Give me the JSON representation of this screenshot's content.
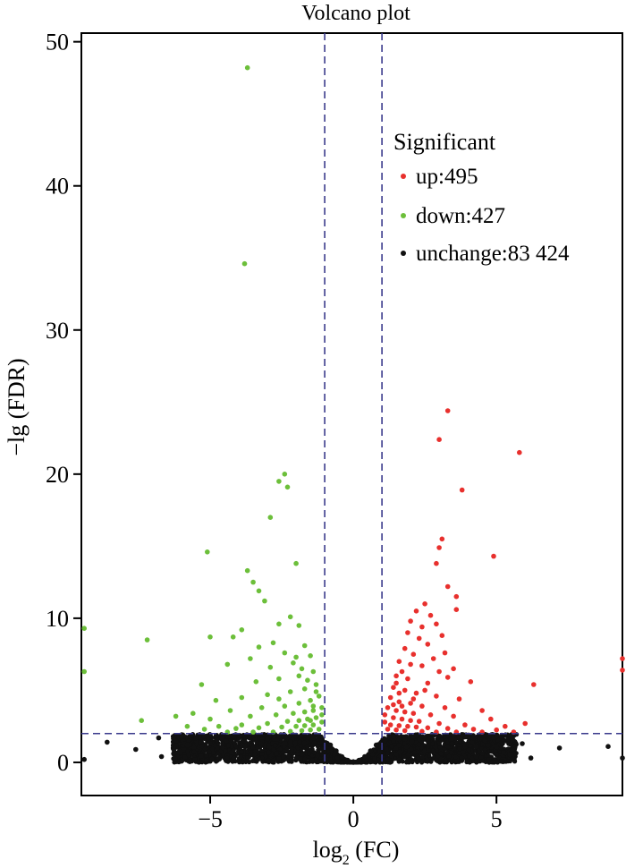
{
  "chart_data": {
    "type": "scatter",
    "title": "Volcano plot",
    "xlabel_main": "log",
    "xlabel_sub": "2",
    "xlabel_tail": " (FC)",
    "ylabel": "−lg (FDR)",
    "xlim": [
      -9.5,
      9.4
    ],
    "ylim": [
      -2.3,
      50.6
    ],
    "xticks": [
      -5,
      0,
      5
    ],
    "xtick_labels": [
      "−5",
      "0",
      "5"
    ],
    "yticks": [
      0,
      10,
      20,
      30,
      40,
      50
    ],
    "ytick_labels": [
      "0",
      "10",
      "20",
      "30",
      "40",
      "50"
    ],
    "thresholds": {
      "x": [
        -1,
        1
      ],
      "y": 2
    },
    "grid": false,
    "legend": {
      "position": "top-right",
      "title": "Significant",
      "entries": [
        {
          "label": "up:495",
          "color": "#e8302d"
        },
        {
          "label": "down:427",
          "color": "#6cbf3a"
        },
        {
          "label": "unchange:83 424",
          "color": "#111111"
        }
      ]
    },
    "series": [
      {
        "name": "up",
        "color": "#e8302d",
        "points": [
          [
            3.3,
            24.4
          ],
          [
            3.0,
            22.4
          ],
          [
            5.8,
            21.5
          ],
          [
            3.8,
            18.9
          ],
          [
            3.1,
            15.5
          ],
          [
            3.0,
            14.9
          ],
          [
            4.9,
            14.3
          ],
          [
            2.9,
            13.8
          ],
          [
            3.3,
            12.2
          ],
          [
            3.6,
            11.5
          ],
          [
            2.5,
            11.0
          ],
          [
            2.2,
            10.5
          ],
          [
            2.7,
            10.2
          ],
          [
            3.6,
            10.6
          ],
          [
            2.0,
            9.8
          ],
          [
            2.4,
            9.4
          ],
          [
            2.9,
            9.6
          ],
          [
            1.9,
            9.0
          ],
          [
            2.3,
            8.6
          ],
          [
            2.6,
            8.2
          ],
          [
            3.1,
            8.8
          ],
          [
            1.8,
            7.9
          ],
          [
            2.1,
            7.5
          ],
          [
            2.8,
            7.2
          ],
          [
            3.2,
            7.6
          ],
          [
            1.6,
            7.0
          ],
          [
            2.4,
            6.7
          ],
          [
            3.0,
            6.3
          ],
          [
            3.5,
            6.5
          ],
          [
            1.5,
            6.0
          ],
          [
            1.9,
            5.8
          ],
          [
            2.6,
            5.5
          ],
          [
            3.3,
            5.9
          ],
          [
            4.1,
            5.6
          ],
          [
            6.3,
            5.4
          ],
          [
            1.4,
            5.2
          ],
          [
            1.8,
            5.0
          ],
          [
            2.2,
            4.8
          ],
          [
            2.9,
            4.6
          ],
          [
            3.7,
            4.4
          ],
          [
            1.3,
            4.5
          ],
          [
            1.6,
            4.2
          ],
          [
            2.0,
            4.1
          ],
          [
            2.4,
            3.9
          ],
          [
            3.2,
            3.8
          ],
          [
            4.5,
            3.6
          ],
          [
            1.2,
            3.8
          ],
          [
            1.5,
            3.6
          ],
          [
            1.8,
            3.5
          ],
          [
            2.1,
            3.4
          ],
          [
            2.7,
            3.3
          ],
          [
            3.5,
            3.2
          ],
          [
            4.8,
            3.0
          ],
          [
            1.1,
            3.3
          ],
          [
            1.4,
            3.1
          ],
          [
            1.7,
            3.0
          ],
          [
            2.0,
            2.9
          ],
          [
            2.3,
            2.85
          ],
          [
            3.0,
            2.7
          ],
          [
            3.9,
            2.6
          ],
          [
            5.3,
            2.5
          ],
          [
            6.0,
            2.7
          ],
          [
            1.1,
            2.8
          ],
          [
            1.3,
            2.6
          ],
          [
            1.6,
            2.55
          ],
          [
            1.9,
            2.5
          ],
          [
            2.2,
            2.45
          ],
          [
            2.6,
            2.4
          ],
          [
            3.3,
            2.35
          ],
          [
            4.2,
            2.3
          ],
          [
            5.0,
            2.25
          ],
          [
            1.2,
            2.3
          ],
          [
            1.5,
            2.25
          ],
          [
            1.8,
            2.2
          ],
          [
            2.4,
            2.15
          ],
          [
            2.9,
            2.1
          ],
          [
            3.6,
            2.1
          ],
          [
            4.5,
            2.1
          ],
          [
            5.6,
            2.1
          ],
          [
            1.6,
            4.8
          ],
          [
            1.7,
            6.3
          ],
          [
            2.0,
            6.8
          ],
          [
            1.5,
            5.5
          ],
          [
            1.4,
            4.0
          ],
          [
            1.7,
            3.9
          ],
          [
            2.1,
            4.4
          ],
          [
            2.5,
            5.0
          ],
          [
            9.4,
            7.2
          ],
          [
            9.4,
            6.4
          ]
        ]
      },
      {
        "name": "down",
        "color": "#6cbf3a",
        "points": [
          [
            -3.7,
            48.2
          ],
          [
            -3.8,
            34.6
          ],
          [
            -2.4,
            20.0
          ],
          [
            -2.6,
            19.5
          ],
          [
            -2.3,
            19.1
          ],
          [
            -2.9,
            17.0
          ],
          [
            -5.1,
            14.6
          ],
          [
            -3.7,
            13.3
          ],
          [
            -2.0,
            13.8
          ],
          [
            -3.5,
            12.5
          ],
          [
            -3.3,
            11.9
          ],
          [
            -3.1,
            11.2
          ],
          [
            -2.2,
            10.1
          ],
          [
            -2.6,
            9.6
          ],
          [
            -1.9,
            9.5
          ],
          [
            -3.9,
            9.2
          ],
          [
            -4.2,
            8.7
          ],
          [
            -7.2,
            8.5
          ],
          [
            -5.0,
            8.7
          ],
          [
            -2.8,
            8.3
          ],
          [
            -3.3,
            8.0
          ],
          [
            -1.7,
            8.1
          ],
          [
            -2.4,
            7.6
          ],
          [
            -3.6,
            7.2
          ],
          [
            -1.5,
            7.4
          ],
          [
            -2.1,
            6.9
          ],
          [
            -2.9,
            6.6
          ],
          [
            -4.4,
            6.8
          ],
          [
            -1.4,
            6.3
          ],
          [
            -1.9,
            6.0
          ],
          [
            -2.6,
            5.8
          ],
          [
            -3.4,
            5.6
          ],
          [
            -5.3,
            5.4
          ],
          [
            -1.3,
            5.4
          ],
          [
            -1.7,
            5.1
          ],
          [
            -2.2,
            4.9
          ],
          [
            -3.0,
            4.7
          ],
          [
            -3.9,
            4.5
          ],
          [
            -4.8,
            4.3
          ],
          [
            -1.2,
            4.6
          ],
          [
            -1.5,
            4.3
          ],
          [
            -1.9,
            4.1
          ],
          [
            -2.4,
            3.9
          ],
          [
            -3.2,
            3.8
          ],
          [
            -4.3,
            3.6
          ],
          [
            -5.6,
            3.4
          ],
          [
            -6.2,
            3.2
          ],
          [
            -1.1,
            3.8
          ],
          [
            -1.4,
            3.6
          ],
          [
            -1.7,
            3.5
          ],
          [
            -2.1,
            3.4
          ],
          [
            -2.7,
            3.3
          ],
          [
            -3.6,
            3.2
          ],
          [
            -5.0,
            3.0
          ],
          [
            -7.4,
            2.9
          ],
          [
            -1.1,
            3.3
          ],
          [
            -1.3,
            3.1
          ],
          [
            -1.6,
            3.0
          ],
          [
            -1.9,
            2.9
          ],
          [
            -2.3,
            2.85
          ],
          [
            -3.0,
            2.7
          ],
          [
            -3.9,
            2.6
          ],
          [
            -4.7,
            2.5
          ],
          [
            -5.8,
            2.5
          ],
          [
            -1.1,
            2.8
          ],
          [
            -1.4,
            2.6
          ],
          [
            -1.7,
            2.55
          ],
          [
            -2.0,
            2.5
          ],
          [
            -2.5,
            2.45
          ],
          [
            -3.3,
            2.4
          ],
          [
            -4.1,
            2.35
          ],
          [
            -5.2,
            2.3
          ],
          [
            -1.2,
            2.3
          ],
          [
            -1.5,
            2.25
          ],
          [
            -1.8,
            2.2
          ],
          [
            -2.2,
            2.15
          ],
          [
            -2.8,
            2.1
          ],
          [
            -3.5,
            2.1
          ],
          [
            -4.4,
            2.1
          ],
          [
            -1.3,
            4.9
          ],
          [
            -1.6,
            5.7
          ],
          [
            -1.8,
            6.5
          ],
          [
            -2.0,
            7.3
          ],
          [
            -1.4,
            3.9
          ],
          [
            -2.6,
            4.4
          ],
          [
            -1.5,
            2.9
          ],
          [
            -9.4,
            6.3
          ],
          [
            -9.4,
            9.3
          ]
        ]
      },
      {
        "name": "unchange",
        "color": "#111111",
        "points": [
          [
            -8.6,
            1.4
          ],
          [
            -6.8,
            1.7
          ],
          [
            -6.7,
            0.4
          ],
          [
            -6.0,
            1.8
          ],
          [
            -5.5,
            1.7
          ],
          [
            -5.0,
            1.9
          ],
          [
            -4.6,
            1.6
          ],
          [
            -4.2,
            1.8
          ],
          [
            -3.8,
            1.5
          ],
          [
            -3.4,
            1.9
          ],
          [
            -3.0,
            1.6
          ],
          [
            -2.6,
            1.8
          ],
          [
            -2.2,
            1.4
          ],
          [
            -1.8,
            1.9
          ],
          [
            -1.4,
            1.7
          ],
          [
            -1.1,
            1.5
          ],
          [
            -0.8,
            1.2
          ],
          [
            -0.6,
            0.8
          ],
          [
            -0.4,
            0.4
          ],
          [
            -0.2,
            0.15
          ],
          [
            0.0,
            0.05
          ],
          [
            0.2,
            0.15
          ],
          [
            0.4,
            0.4
          ],
          [
            0.6,
            0.8
          ],
          [
            0.8,
            1.2
          ],
          [
            1.1,
            1.5
          ],
          [
            1.4,
            1.8
          ],
          [
            1.8,
            1.6
          ],
          [
            2.2,
            1.9
          ],
          [
            2.6,
            1.5
          ],
          [
            3.0,
            1.8
          ],
          [
            3.4,
            1.6
          ],
          [
            3.8,
            1.9
          ],
          [
            4.2,
            1.7
          ],
          [
            4.6,
            1.5
          ],
          [
            5.0,
            1.8
          ],
          [
            5.4,
            1.6
          ],
          [
            6.2,
            0.3
          ],
          [
            8.9,
            1.1
          ],
          [
            -9.4,
            0.2
          ],
          [
            9.4,
            0.3
          ],
          [
            -7.6,
            0.9
          ],
          [
            7.2,
            1.0
          ],
          [
            -5.8,
            1.2
          ],
          [
            5.9,
            1.3
          ]
        ]
      }
    ],
    "unchange_band": {
      "x_range": [
        -6.3,
        5.7
      ],
      "y_max": 1.95,
      "notch_center": 0,
      "notch_halfwidth": 1.0
    }
  }
}
